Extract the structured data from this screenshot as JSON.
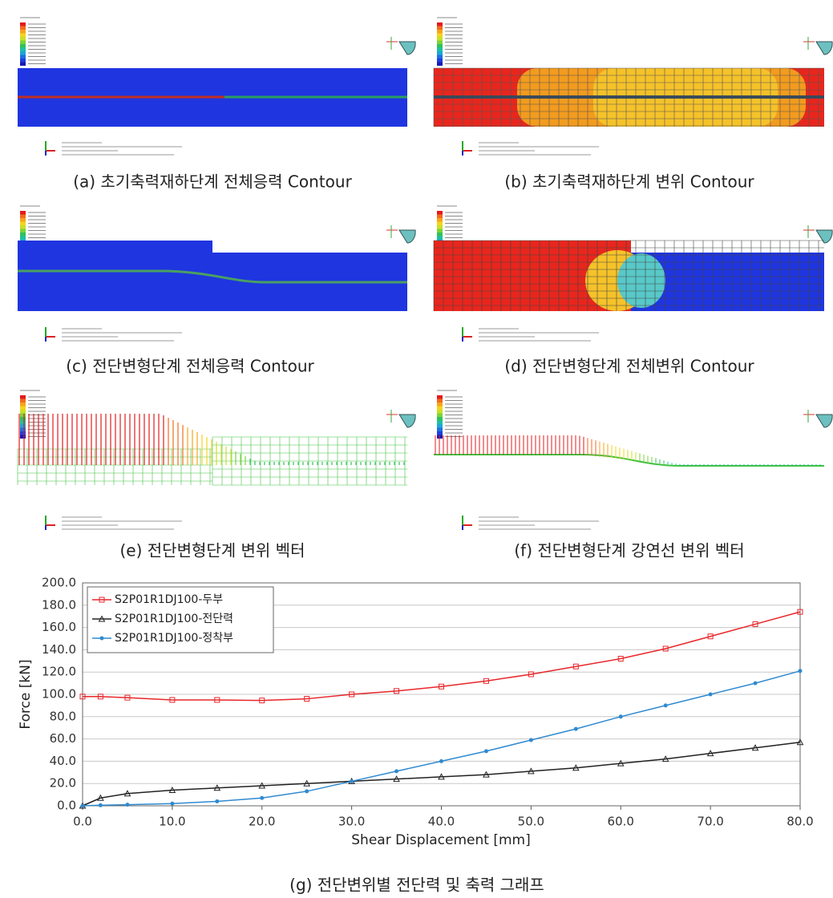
{
  "panels": [
    {
      "caption": "(a) 초기축력재하단계 전체응력 Contour"
    },
    {
      "caption": "(b) 초기축력재하단계 변위 Contour"
    },
    {
      "caption": "(c) 전단변형단계 전체응력 Contour"
    },
    {
      "caption": "(d) 전단변형단계 전체변위 Contour"
    },
    {
      "caption": "(e) 전단변형단계 변위 벡터"
    },
    {
      "caption": "(f) 전단변형단계 강연선 변위 벡터"
    }
  ],
  "chart_data": {
    "type": "line",
    "caption": "(g) 전단변위별 전단력 및 축력 그래프",
    "x_label": "Shear Displacement [mm]",
    "y_label": "Force [kN]",
    "x": [
      0,
      2,
      5,
      10,
      15,
      20,
      25,
      30,
      35,
      40,
      45,
      50,
      55,
      60,
      65,
      70,
      75,
      80
    ],
    "series": [
      {
        "name": "S2P01R1DJ100-두부",
        "color": "#e8262b",
        "marker": "square",
        "values": [
          98,
          98,
          97,
          95,
          95,
          94.5,
          96,
          100,
          103,
          107,
          112,
          118,
          125,
          132,
          141,
          152,
          163,
          174
        ]
      },
      {
        "name": "S2P01R1DJ100-전단력",
        "color": "#222222",
        "marker": "triangle",
        "values": [
          0,
          7,
          11,
          14,
          16,
          18,
          20,
          22,
          24,
          26,
          28,
          31,
          34,
          38,
          42,
          47,
          52,
          57
        ]
      },
      {
        "name": "S2P01R1DJ100-정착부",
        "color": "#2f8ad0",
        "marker": "circle",
        "values": [
          0,
          0.5,
          1,
          2,
          4,
          7,
          13,
          22,
          31,
          40,
          49,
          59,
          69,
          80,
          90,
          100,
          110,
          121
        ]
      }
    ],
    "xlim": [
      0,
      80
    ],
    "ylim": [
      0,
      200
    ],
    "xticks": [
      {
        "value": 0,
        "label": "0.0"
      },
      {
        "value": 10,
        "label": "10.0"
      },
      {
        "value": 20,
        "label": "20.0"
      },
      {
        "value": 30,
        "label": "30.0"
      },
      {
        "value": 40,
        "label": "40.0"
      },
      {
        "value": 50,
        "label": "50.0"
      },
      {
        "value": 60,
        "label": "60.0"
      },
      {
        "value": 70,
        "label": "70.0"
      },
      {
        "value": 80,
        "label": "80.0"
      }
    ],
    "yticks": [
      {
        "value": 0,
        "label": "0.0"
      },
      {
        "value": 20,
        "label": "20.0"
      },
      {
        "value": 40,
        "label": "40.0"
      },
      {
        "value": 60,
        "label": "60.0"
      },
      {
        "value": 80,
        "label": "80.0"
      },
      {
        "value": 100,
        "label": "100.0"
      },
      {
        "value": 120,
        "label": "120.0"
      },
      {
        "value": 140,
        "label": "140.0"
      },
      {
        "value": 160,
        "label": "160.0"
      },
      {
        "value": 180,
        "label": "180.0"
      },
      {
        "value": 200,
        "label": "200.0"
      }
    ],
    "grid": true,
    "legend": "upper-left"
  }
}
